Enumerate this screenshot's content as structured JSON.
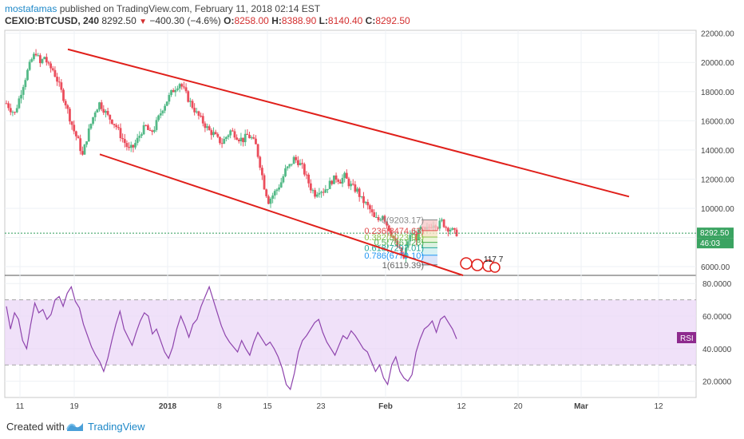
{
  "header": {
    "author": "mostafamas",
    "published_text": " published on TradingView.com, February 11, 2018 02:14 EST",
    "symbol": "CEXIO:BTCUSD, 240",
    "last": "8292.50",
    "change": "−400.30 (−4.6%)",
    "o_label": "O:",
    "o_value": "8258.00",
    "h_label": "H:",
    "h_value": "8388.90",
    "l_label": "L:",
    "l_value": "8140.40",
    "c_label": "C:",
    "c_value": "8292.50"
  },
  "footer": {
    "created_with": "Created with",
    "brand": "TradingView"
  },
  "badges": {
    "price": "8292.50",
    "countdown": "46:03",
    "rsi": "RSI",
    "events": "117 7"
  },
  "colors": {
    "up": "#53b987",
    "down": "#eb4d5c",
    "channel": "#e0201b",
    "rsi_line": "#8e44ad",
    "rsi_band": "#ebd7f7",
    "price_line": "#2e9c5a"
  },
  "chart_data": [
    {
      "type": "candlestick",
      "symbol": "CEXIO:BTCUSD",
      "interval": "240",
      "ylim": [
        5400,
        22200
      ],
      "y_ticks": [
        6000,
        8000,
        10000,
        12000,
        14000,
        16000,
        18000,
        20000,
        22000
      ],
      "y_tick_labels": [
        "6000.00",
        "8000.00",
        "10000.00",
        "12000.00",
        "14000.00",
        "16000.00",
        "18000.00",
        "20000.00",
        "22000.00"
      ],
      "x_ticks": [
        "11",
        "19",
        "2018",
        "8",
        "15",
        "23",
        "Feb",
        "12",
        "20",
        "Mar",
        "12"
      ],
      "last_price": 8292.5,
      "close_path": [
        [
          0,
          17200
        ],
        [
          3,
          16800
        ],
        [
          6,
          16500
        ],
        [
          9,
          17500
        ],
        [
          12,
          18500
        ],
        [
          15,
          19400
        ],
        [
          17,
          20200
        ],
        [
          18,
          20700
        ],
        [
          19,
          19900
        ],
        [
          20,
          20400
        ],
        [
          21,
          19700
        ],
        [
          22,
          19500
        ],
        [
          23,
          18800
        ],
        [
          24,
          18000
        ],
        [
          25,
          17200
        ],
        [
          26,
          16200
        ],
        [
          27,
          15300
        ],
        [
          28,
          14600
        ],
        [
          29,
          13600
        ],
        [
          30,
          14800
        ],
        [
          31,
          15800
        ],
        [
          32,
          16700
        ],
        [
          33,
          17200
        ],
        [
          34,
          16800
        ],
        [
          35,
          16300
        ],
        [
          36,
          16000
        ],
        [
          37,
          15600
        ],
        [
          38,
          15000
        ],
        [
          39,
          14500
        ],
        [
          40,
          14000
        ],
        [
          41,
          14200
        ],
        [
          42,
          14700
        ],
        [
          43,
          15300
        ],
        [
          44,
          15600
        ],
        [
          45,
          15100
        ],
        [
          46,
          15500
        ],
        [
          47,
          16200
        ],
        [
          48,
          16900
        ],
        [
          49,
          17400
        ],
        [
          50,
          17900
        ],
        [
          51,
          18300
        ],
        [
          52,
          18600
        ],
        [
          53,
          18100
        ],
        [
          54,
          17500
        ],
        [
          55,
          17000
        ],
        [
          56,
          16500
        ],
        [
          57,
          16100
        ],
        [
          58,
          15700
        ],
        [
          59,
          15300
        ],
        [
          60,
          15100
        ],
        [
          61,
          14700
        ],
        [
          62,
          14500
        ],
        [
          63,
          14900
        ],
        [
          64,
          15300
        ],
        [
          65,
          15100
        ],
        [
          66,
          14800
        ],
        [
          67,
          14700
        ],
        [
          68,
          15000
        ],
        [
          69,
          14800
        ],
        [
          70,
          14300
        ],
        [
          71,
          13000
        ],
        [
          72,
          11500
        ],
        [
          73,
          10500
        ],
        [
          74,
          10900
        ],
        [
          75,
          11300
        ],
        [
          76,
          11800
        ],
        [
          77,
          12600
        ],
        [
          78,
          12900
        ],
        [
          79,
          13400
        ],
        [
          80,
          13200
        ],
        [
          81,
          12800
        ],
        [
          82,
          12100
        ],
        [
          83,
          11400
        ],
        [
          84,
          11000
        ],
        [
          85,
          11300
        ],
        [
          86,
          11200
        ],
        [
          87,
          11500
        ],
        [
          88,
          11900
        ],
        [
          89,
          12100
        ],
        [
          90,
          11900
        ],
        [
          91,
          12200
        ],
        [
          92,
          11700
        ],
        [
          93,
          11400
        ],
        [
          94,
          11200
        ],
        [
          95,
          10600
        ],
        [
          96,
          10300
        ],
        [
          97,
          9900
        ],
        [
          98,
          9300
        ],
        [
          99,
          9200
        ],
        [
          100,
          9600
        ],
        [
          101,
          8900
        ],
        [
          102,
          8300
        ],
        [
          103,
          7600
        ],
        [
          104,
          7100
        ],
        [
          105,
          6500
        ],
        [
          106,
          7800
        ],
        [
          107,
          8300
        ],
        [
          108,
          8000
        ],
        [
          109,
          8600
        ],
        [
          110,
          8400
        ],
        [
          111,
          8700
        ],
        [
          112,
          9000
        ],
        [
          113,
          8800
        ],
        [
          114,
          9100
        ],
        [
          115,
          8700
        ],
        [
          116,
          8600
        ],
        [
          117,
          8300
        ]
      ],
      "channel_upper": [
        [
          85,
          20900
        ],
        [
          580,
          10800
        ]
      ],
      "channel_lower": [
        [
          125,
          13700
        ],
        [
          580,
          5400
        ]
      ],
      "fibonacci": [
        {
          "level": "0",
          "price": "9203.17"
        },
        {
          "level": "0.236",
          "price": "8474.63"
        },
        {
          "level": "0.382",
          "price": "8023.96"
        },
        {
          "level": "0.5",
          "price": "7661.28"
        },
        {
          "level": "0.618",
          "price": "7297.01"
        },
        {
          "level": "0.786",
          "price": "6779.10"
        },
        {
          "level": "1",
          "price": "6119.39"
        }
      ]
    },
    {
      "type": "line",
      "name": "RSI",
      "ylim": [
        10,
        85
      ],
      "y_ticks": [
        20,
        40,
        60,
        80
      ],
      "y_tick_labels": [
        "20.0000",
        "40.0000",
        "60.0000",
        "80.0000"
      ],
      "bands": [
        30,
        70
      ],
      "values": [
        66,
        52,
        62,
        58,
        45,
        40,
        55,
        68,
        62,
        64,
        58,
        61,
        70,
        72,
        66,
        74,
        78,
        69,
        65,
        55,
        48,
        41,
        36,
        32,
        26,
        34,
        45,
        55,
        63,
        52,
        47,
        42,
        50,
        57,
        62,
        60,
        49,
        52,
        45,
        38,
        34,
        41,
        52,
        60,
        54,
        47,
        55,
        58,
        66,
        72,
        78,
        70,
        62,
        54,
        48,
        44,
        41,
        38,
        45,
        40,
        36,
        44,
        50,
        46,
        42,
        44,
        40,
        35,
        28,
        18,
        15,
        25,
        38,
        45,
        48,
        52,
        56,
        58,
        50,
        44,
        40,
        36,
        42,
        48,
        46,
        51,
        48,
        44,
        40,
        38,
        32,
        26,
        30,
        22,
        18,
        30,
        35,
        26,
        22,
        20,
        24,
        38,
        46,
        52,
        54,
        57,
        50,
        58,
        60,
        56,
        52,
        46
      ]
    }
  ]
}
